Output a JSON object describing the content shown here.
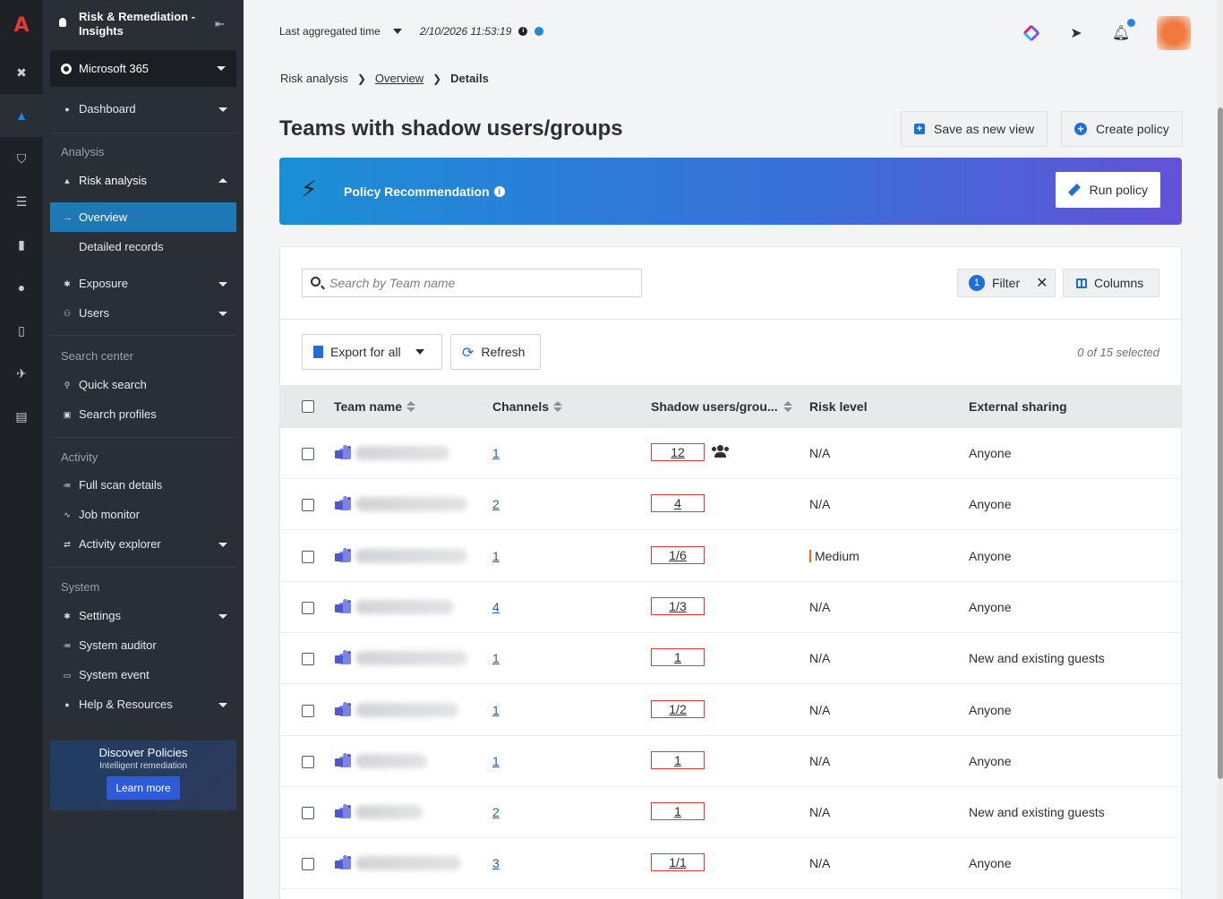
{
  "sidebar": {
    "title": "Risk & Remediation - Insights",
    "tenant": "Microsoft 365",
    "dashboard": "Dashboard",
    "section_analysis": "Analysis",
    "risk_analysis": "Risk analysis",
    "overview": "Overview",
    "detailed_records": "Detailed records",
    "exposure": "Exposure",
    "users": "Users",
    "section_search": "Search center",
    "quick_search": "Quick search",
    "search_profiles": "Search profiles",
    "section_activity": "Activity",
    "full_scan": "Full scan details",
    "job_monitor": "Job monitor",
    "activity_explorer": "Activity explorer",
    "section_system": "System",
    "settings": "Settings",
    "system_auditor": "System auditor",
    "system_event": "System event",
    "help": "Help & Resources",
    "promo": {
      "title": "Discover Policies",
      "subtitle": "Intelligent remediation",
      "button": "Learn more"
    }
  },
  "topbar": {
    "time_label": "Last aggregated time",
    "time_value": "2/10/2026 11:53:19",
    "accent": "#1e88e5"
  },
  "breadcrumb": {
    "root": "Risk analysis",
    "middle": "Overview",
    "current": "Details"
  },
  "page": {
    "title": "Teams with shadow users/groups",
    "save_view": "Save as new view",
    "create_policy": "Create policy"
  },
  "banner": {
    "title": "Policy Recommendation",
    "run": "Run policy"
  },
  "toolbar": {
    "search_placeholder": "Search by Team name",
    "filter_count": "1",
    "filter": "Filter",
    "columns": "Columns",
    "export": "Export for all",
    "refresh": "Refresh",
    "selected": "0 of 15 selected"
  },
  "table": {
    "headers": {
      "team": "Team name",
      "channels": "Channels",
      "shadow": "Shadow users/grou...",
      "risk": "Risk level",
      "sharing": "External sharing"
    },
    "rows": [
      {
        "channels": "1",
        "shadow": "12",
        "risk": "N/A",
        "sharing": "Anyone"
      },
      {
        "channels": "2",
        "shadow": "4",
        "risk": "N/A",
        "sharing": "Anyone"
      },
      {
        "channels": "1",
        "shadow": "1/6",
        "risk": "Medium",
        "sharing": "Anyone"
      },
      {
        "channels": "4",
        "shadow": "1/3",
        "risk": "N/A",
        "sharing": "Anyone"
      },
      {
        "channels": "1",
        "shadow": "1",
        "risk": "N/A",
        "sharing": "New and existing guests"
      },
      {
        "channels": "1",
        "shadow": "1/2",
        "risk": "N/A",
        "sharing": "Anyone"
      },
      {
        "channels": "1",
        "shadow": "1",
        "risk": "N/A",
        "sharing": "Anyone"
      },
      {
        "channels": "2",
        "shadow": "1",
        "risk": "N/A",
        "sharing": "New and existing guests"
      },
      {
        "channels": "3",
        "shadow": "1/1",
        "risk": "N/A",
        "sharing": "Anyone"
      }
    ]
  }
}
